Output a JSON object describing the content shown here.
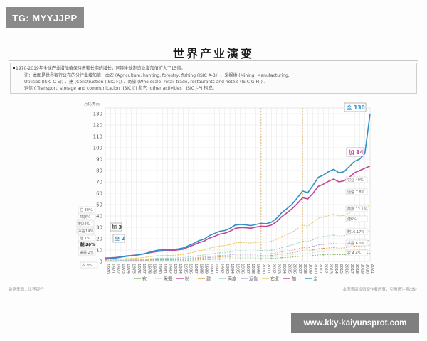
{
  "watermark": {
    "tag": "TG: MYYJJPP",
    "url": "www.kky-kaiyunsprot.com"
  },
  "header": {
    "title": "世界产业演变"
  },
  "notes": [
    "1970-2019年全球产业增加值保持着较长期的增长，同期全球制造业增加值扩大了15倍。",
    "注：本图是世界银行公布的分行业增加值，由农 (Agriculture, hunting, forestry, fishing (ISIC A-B)) 、采掘供 (Mining, Manufacturing,",
    "Utilities (ISIC C-E)) 、建 (Construction (ISIC F)) 、商旅 (Wholesale, retail trade, restaurants and hotels (ISIC G-H)) 、",
    "运信 ( Transport, storage and communication (ISIC I)) 和它 (other activities , ISIC J-P) 构成。"
  ],
  "footer": {
    "source": "数据来源：世界银行",
    "disclaimer": "本图表版权归原作者所有，引用请注明出处"
  },
  "colors": {
    "total": "#2f8fc7",
    "manufacturing": "#c2449a",
    "other": "#e6c86a",
    "construction": "#d79b4a",
    "commerce": "#9ad4c8",
    "transport": "#b8a9d9",
    "mining": "#bfe3ef",
    "agriculture": "#8bb36a",
    "grid": "#e4e4e4",
    "dash": "#d6a14a"
  },
  "chart_data": {
    "type": "line",
    "title": "",
    "ylabel": "万亿美元",
    "ylim": [
      0,
      135
    ],
    "yticks": [
      0,
      10,
      20,
      30,
      40,
      50,
      60,
      70,
      80,
      90,
      100,
      110,
      120,
      130
    ],
    "x": [
      1970,
      1971,
      1972,
      1973,
      1974,
      1975,
      1976,
      1977,
      1978,
      1979,
      1980,
      1981,
      1982,
      1983,
      1984,
      1985,
      1986,
      1987,
      1988,
      1989,
      1990,
      1991,
      1992,
      1993,
      1994,
      1995,
      1996,
      1997,
      1998,
      1999,
      2000,
      2001,
      2002,
      2003,
      2004,
      2005,
      2006,
      2007,
      2008,
      2009,
      2010,
      2011,
      2012,
      2013,
      2014,
      2015,
      2016,
      2017,
      2018,
      2019,
      2020,
      2021
    ],
    "series": [
      {
        "name": "全",
        "key": "total",
        "values": [
          2,
          2.5,
          3,
          3.8,
          4.5,
          5,
          5.5,
          6.2,
          7.5,
          8.6,
          9.8,
          10.2,
          10.2,
          10.5,
          11,
          11.8,
          13.8,
          15.8,
          18.2,
          19.5,
          22.6,
          24.5,
          26.5,
          27.2,
          29,
          32,
          32.5,
          32.2,
          31.5,
          32.5,
          33.5,
          33.2,
          34.5,
          38,
          43,
          46.5,
          50.5,
          56,
          62,
          60.5,
          67,
          74,
          76,
          79,
          81,
          78,
          79,
          83.5,
          88,
          90,
          95,
          130
        ]
      },
      {
        "name": "制",
        "key": "manufacturing",
        "values": [
          3,
          3.2,
          3.5,
          4,
          4.8,
          5.2,
          5.7,
          6.3,
          7.2,
          8,
          8.8,
          9.2,
          9.3,
          9.6,
          10.2,
          10.8,
          12.6,
          14.5,
          16.5,
          17.8,
          20.5,
          22,
          24,
          24.8,
          26.5,
          29,
          29.8,
          29.6,
          29.2,
          30.2,
          31,
          30.8,
          32,
          35,
          39.5,
          42.8,
          46.5,
          51,
          56,
          55,
          60,
          66,
          68,
          70.5,
          72.5,
          70,
          71,
          74,
          78,
          80,
          82,
          84
        ]
      },
      {
        "name": "它",
        "key": "other",
        "values": [
          1.2,
          1.4,
          1.6,
          2,
          2.3,
          2.6,
          2.9,
          3.2,
          3.9,
          4.4,
          5,
          5.2,
          5.2,
          5.4,
          5.7,
          6.1,
          7.1,
          8.1,
          9.3,
          10,
          11.6,
          12.5,
          13.5,
          14,
          14.9,
          16.4,
          16.6,
          16.5,
          16.2,
          16.7,
          17.2,
          17,
          17.7,
          19.5,
          22,
          23.8,
          25.9,
          28.7,
          31.8,
          31,
          34.4,
          38,
          39,
          40.5,
          41.5,
          40,
          40.5,
          42.8,
          45,
          46,
          48,
          49
        ]
      },
      {
        "name": "商旅",
        "key": "commerce",
        "values": [
          0.7,
          0.8,
          0.9,
          1.1,
          1.3,
          1.5,
          1.6,
          1.8,
          2.2,
          2.5,
          2.8,
          2.9,
          2.9,
          3,
          3.2,
          3.4,
          3.9,
          4.5,
          5.2,
          5.6,
          6.5,
          7,
          7.6,
          7.8,
          8.3,
          9.2,
          9.3,
          9.2,
          9,
          9.3,
          9.6,
          9.5,
          9.9,
          10.9,
          12.3,
          13.3,
          14.5,
          16,
          17.8,
          17.3,
          19.2,
          21.2,
          21.8,
          22.6,
          23.2,
          22.3,
          22.6,
          23.9,
          25.2,
          25.7,
          26.5,
          27
        ]
      },
      {
        "name": "运信",
        "key": "transport",
        "values": [
          0.5,
          0.55,
          0.6,
          0.75,
          0.9,
          1,
          1.1,
          1.25,
          1.5,
          1.7,
          1.9,
          2,
          2,
          2.1,
          2.2,
          2.35,
          2.7,
          3.1,
          3.6,
          3.9,
          4.5,
          4.8,
          5.2,
          5.4,
          5.7,
          6.3,
          6.4,
          6.3,
          6.2,
          6.4,
          6.6,
          6.5,
          6.8,
          7.5,
          8.4,
          9.1,
          9.9,
          11,
          12.2,
          11.9,
          13.2,
          14.5,
          15,
          15.5,
          15.9,
          15.3,
          15.5,
          16.4,
          17.2,
          17.6,
          18,
          18.5
        ]
      },
      {
        "name": "建",
        "key": "construction",
        "values": [
          0.4,
          0.45,
          0.5,
          0.6,
          0.7,
          0.8,
          0.88,
          1,
          1.2,
          1.35,
          1.5,
          1.55,
          1.55,
          1.6,
          1.7,
          1.8,
          2.1,
          2.4,
          2.8,
          3,
          3.5,
          3.7,
          4,
          4.2,
          4.4,
          4.9,
          4.9,
          4.9,
          4.8,
          4.9,
          5.1,
          5,
          5.2,
          5.8,
          6.5,
          7,
          7.6,
          8.4,
          9.4,
          9.1,
          10.1,
          11.2,
          11.5,
          11.9,
          12.2,
          11.7,
          11.9,
          12.6,
          13.2,
          13.5,
          14,
          14.3
        ]
      },
      {
        "name": "采掘供",
        "key": "mining",
        "values": [
          0.3,
          0.33,
          0.37,
          0.45,
          0.55,
          0.6,
          0.66,
          0.74,
          0.9,
          1,
          1.12,
          1.16,
          1.16,
          1.2,
          1.26,
          1.35,
          1.58,
          1.8,
          2.1,
          2.25,
          2.6,
          2.8,
          3,
          3.1,
          3.3,
          3.7,
          3.7,
          3.7,
          3.6,
          3.7,
          3.8,
          3.8,
          3.9,
          4.3,
          4.9,
          5.3,
          5.8,
          6.4,
          7.1,
          6.9,
          7.6,
          8.4,
          8.7,
          9,
          9.2,
          8.9,
          9,
          9.5,
          10,
          10.2,
          10.5,
          10.8
        ]
      },
      {
        "name": "农",
        "key": "agriculture",
        "values": [
          0.2,
          0.22,
          0.25,
          0.3,
          0.36,
          0.4,
          0.44,
          0.5,
          0.6,
          0.68,
          0.75,
          0.78,
          0.78,
          0.8,
          0.85,
          0.9,
          1.05,
          1.2,
          1.4,
          1.5,
          1.75,
          1.9,
          2,
          2.1,
          2.2,
          2.45,
          2.5,
          2.45,
          2.4,
          2.5,
          2.55,
          2.5,
          2.6,
          2.9,
          3.3,
          3.5,
          3.9,
          4.3,
          4.8,
          4.6,
          5.1,
          5.6,
          5.8,
          6,
          6.2,
          5.9,
          6,
          6.4,
          6.7,
          6.9,
          7,
          7.2
        ]
      }
    ],
    "legend": [
      "农",
      "采掘",
      "制",
      "建",
      "商旅",
      "运信",
      "它业",
      "加",
      "全"
    ],
    "legend_position": "bottom",
    "annotations": {
      "start_left": [
        "它 30%",
        "商旅%",
        "制24%",
        "采掘14%",
        "建 7%",
        "运信%",
        "制 20%",
        "采掘 2%",
        "农 9%"
      ],
      "start_callouts": [
        "加 3",
        "全 2"
      ],
      "end_callouts": [
        "全 130",
        "加 84"
      ],
      "end_right": [
        "它业 49%",
        "运信 7.8%",
        "商旅 12.1%",
        "建6%",
        "制16.17%",
        "采掘 6.0%",
        "农 4.4%"
      ]
    },
    "dashed_years": [
      2000,
      2008
    ],
    "grid": true
  }
}
